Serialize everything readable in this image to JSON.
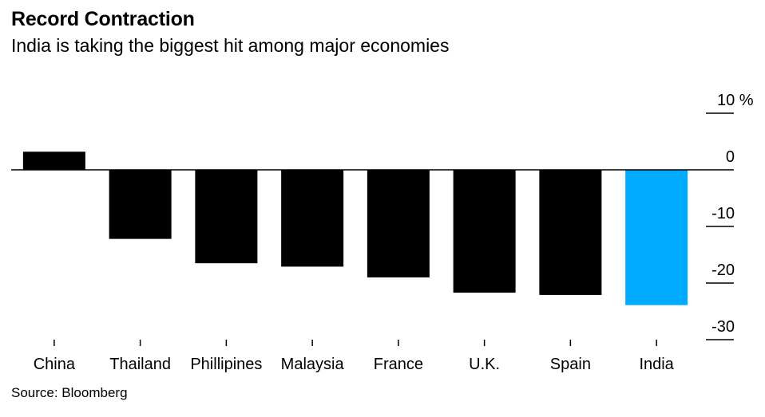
{
  "header": {
    "title": "Record Contraction",
    "subtitle": "India is taking the biggest hit among major economies"
  },
  "footer": {
    "source": "Source: Bloomberg"
  },
  "colors": {
    "bar_default": "#000000",
    "bar_highlight": "#00aaff"
  },
  "chart_data": {
    "type": "bar",
    "title": "Record Contraction",
    "subtitle": "India is taking the biggest hit among major economies",
    "xlabel": "",
    "ylabel": "",
    "categories": [
      "China",
      "Thailand",
      "Phillipines",
      "Malaysia",
      "France",
      "U.K.",
      "Spain",
      "India"
    ],
    "values": [
      3.2,
      -12.2,
      -16.5,
      -17.1,
      -19.0,
      -21.7,
      -22.1,
      -23.9
    ],
    "highlight": "India",
    "ylim": [
      -30,
      10
    ],
    "yticks": [
      10,
      0,
      -10,
      -20,
      -30
    ],
    "ytick_labels": [
      "10 %",
      "0",
      "-10",
      "-20",
      "-30"
    ],
    "y_axis_side": "right",
    "grid": false
  }
}
